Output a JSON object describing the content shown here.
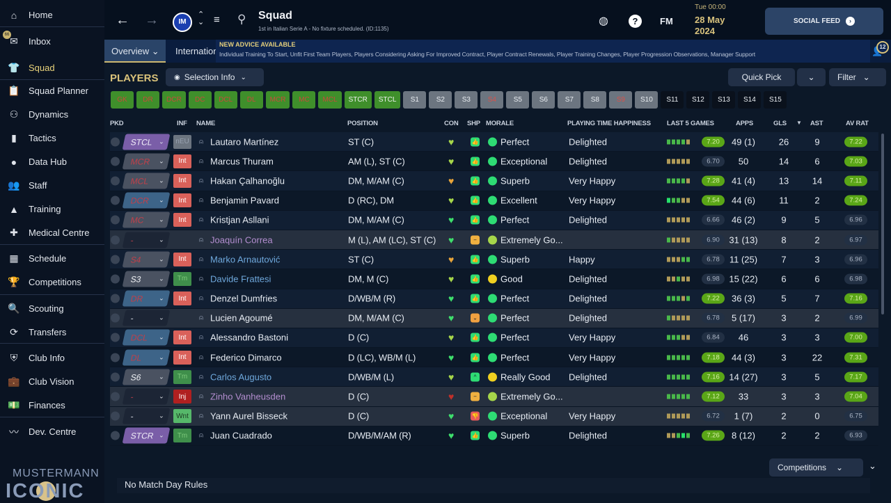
{
  "sidebar": {
    "items": [
      {
        "label": "Home",
        "icon": "home-icon",
        "glyph": "⌂"
      },
      {
        "label": "Inbox",
        "icon": "inbox-icon",
        "glyph": "✉"
      },
      {
        "label": "Squad",
        "icon": "shirt-icon",
        "glyph": "👕"
      },
      {
        "label": "Squad Planner",
        "icon": "clipboard-icon",
        "glyph": "📋"
      },
      {
        "label": "Dynamics",
        "icon": "dynamics-icon",
        "glyph": "⚇"
      },
      {
        "label": "Tactics",
        "icon": "tactics-icon",
        "glyph": "▮"
      },
      {
        "label": "Data Hub",
        "icon": "data-hub-icon",
        "glyph": "●"
      },
      {
        "label": "Staff",
        "icon": "staff-icon",
        "glyph": "👥"
      },
      {
        "label": "Training",
        "icon": "training-icon",
        "glyph": "▲"
      },
      {
        "label": "Medical Centre",
        "icon": "medical-icon",
        "glyph": "✚"
      },
      {
        "label": "Schedule",
        "icon": "calendar-icon",
        "glyph": "▦"
      },
      {
        "label": "Competitions",
        "icon": "trophy-icon",
        "glyph": "🏆"
      },
      {
        "label": "Scouting",
        "icon": "search-icon",
        "glyph": "🔍"
      },
      {
        "label": "Transfers",
        "icon": "transfers-icon",
        "glyph": "⟳"
      },
      {
        "label": "Club Info",
        "icon": "shield-icon",
        "glyph": "⛨"
      },
      {
        "label": "Club Vision",
        "icon": "briefcase-icon",
        "glyph": "💼"
      },
      {
        "label": "Finances",
        "icon": "finances-icon",
        "glyph": "💵"
      },
      {
        "label": "Dev. Centre",
        "icon": "dev-centre-icon",
        "glyph": "〰"
      }
    ],
    "inbox_badge": "66",
    "logo": {
      "line1": "MUSTERMANN",
      "line2": "ICONIC"
    }
  },
  "header": {
    "title": "Squad",
    "subtitle": "1st in Italian Serie A - No fixture scheduled. (ID:1135)",
    "time": "Tue 00:00",
    "date": "28 May 2024",
    "fm": "FM",
    "social_feed": "SOCIAL FEED",
    "club": "Inter"
  },
  "tabs": [
    {
      "label": "Overview ⌄"
    },
    {
      "label": "International"
    }
  ],
  "advice": {
    "title": "NEW ADVICE AVAILABLE",
    "body": "Individual Training To Start, Unfit First Team Players, Players Considering Asking For Improved Contract, Player Contract Renewals, Player Training Changes, Player Progression Observations, Manager Support",
    "badge": "12"
  },
  "players_label": "PLAYERS",
  "selection_info": "Selection Info",
  "quick_pick": "Quick Pick",
  "filter": "Filter",
  "chips": [
    {
      "l": "GK",
      "t": "g"
    },
    {
      "l": "DR",
      "t": "g"
    },
    {
      "l": "DCR",
      "t": "g"
    },
    {
      "l": "DC",
      "t": "g"
    },
    {
      "l": "DCL",
      "t": "g"
    },
    {
      "l": "DL",
      "t": "g"
    },
    {
      "l": "MCR",
      "t": "g"
    },
    {
      "l": "MC",
      "t": "g"
    },
    {
      "l": "MCL",
      "t": "g"
    },
    {
      "l": "STCR",
      "t": "gw"
    },
    {
      "l": "STCL",
      "t": "gw"
    },
    {
      "l": "S1",
      "t": "s"
    },
    {
      "l": "S2",
      "t": "s"
    },
    {
      "l": "S3",
      "t": "s"
    },
    {
      "l": "S4",
      "t": "sr"
    },
    {
      "l": "S5",
      "t": "s"
    },
    {
      "l": "S6",
      "t": "s"
    },
    {
      "l": "S7",
      "t": "s"
    },
    {
      "l": "S8",
      "t": "s"
    },
    {
      "l": "S9",
      "t": "sr"
    },
    {
      "l": "S10",
      "t": "s"
    },
    {
      "l": "S11",
      "t": "k"
    },
    {
      "l": "S12",
      "t": "k"
    },
    {
      "l": "S13",
      "t": "k"
    },
    {
      "l": "S14",
      "t": "k"
    },
    {
      "l": "S15",
      "t": "k"
    }
  ],
  "columns": [
    "PKD",
    "INF",
    "NAME",
    "POSITION",
    "CON",
    "SHP",
    "MORALE",
    "PLAYING TIME HAPPINESS",
    "LAST 5 GAMES",
    "APPS",
    "GLS",
    "AST",
    "AV RAT"
  ],
  "sort_icon": "sort-desc-icon",
  "colors": {
    "green": "#5aa617",
    "purple": "#7a5ea8",
    "blue": "#3d6488",
    "grey": "#4a5261"
  },
  "rows": [
    {
      "name": "Lautaro Martínez",
      "nc": "w",
      "pkd": "STCL",
      "pc": "p",
      "inf": "nEU",
      "pos": "ST (C)",
      "con": "y",
      "shp": "up",
      "mor": "Perfect",
      "mc": "g",
      "pth": "Delighted",
      "bars": "ggggy",
      "l5": "7.20",
      "l5g": 1,
      "apps": "49 (1)",
      "gls": "26",
      "ast": "9",
      "av": "7.22",
      "avg": 1
    },
    {
      "name": "Marcus Thuram",
      "nc": "w",
      "pkd": "MCR",
      "pc": "x",
      "inf": "Int",
      "pos": "AM (L), ST (C)",
      "con": "y",
      "shp": "up",
      "mor": "Exceptional",
      "mc": "g",
      "pth": "Delighted",
      "bars": "yyyyy",
      "l5": "6.70",
      "l5g": 0,
      "apps": "50",
      "gls": "14",
      "ast": "6",
      "av": "7.03",
      "avg": 1
    },
    {
      "name": "Hakan Çalhanoğlu",
      "nc": "w",
      "pkd": "MCL",
      "pc": "x",
      "inf": "Int",
      "pos": "DM, M/AM (C)",
      "con": "o",
      "shp": "up",
      "mor": "Superb",
      "mc": "g",
      "pth": "Very Happy",
      "bars": "ggggy",
      "l5": "7.28",
      "l5g": 1,
      "apps": "41 (4)",
      "gls": "13",
      "ast": "14",
      "av": "7.11",
      "avg": 1
    },
    {
      "name": "Benjamin Pavard",
      "nc": "w",
      "pkd": "DCR",
      "pc": "b",
      "inf": "Int",
      "pos": "D (RC), DM",
      "con": "y",
      "shp": "up",
      "mor": "Excellent",
      "mc": "g",
      "pth": "Very Happy",
      "bars": "bggyy",
      "l5": "7.54",
      "l5g": 1,
      "apps": "44 (6)",
      "gls": "11",
      "ast": "2",
      "av": "7.24",
      "avg": 1
    },
    {
      "name": "Kristjan Asllani",
      "nc": "w",
      "pkd": "MC",
      "pc": "x",
      "inf": "Int",
      "pos": "DM, M/AM (C)",
      "con": "g",
      "shp": "up",
      "mor": "Perfect",
      "mc": "g",
      "pth": "Delighted",
      "bars": "yyyyy",
      "l5": "6.66",
      "l5g": 0,
      "apps": "46 (2)",
      "gls": "9",
      "ast": "5",
      "av": "6.96",
      "avg": 0
    },
    {
      "name": "Joaquín Correa",
      "nc": "p",
      "pkd": "-",
      "pc": "n",
      "inf": "",
      "pos": "M (L), AM (LC), ST (C)",
      "con": "g",
      "shp": "neutral",
      "mor": "Extremely Go...",
      "mc": "l",
      "pth": "",
      "bars": "gyyyy",
      "l5": "6.90",
      "l5g": 0,
      "apps": "31 (13)",
      "gls": "8",
      "ast": "2",
      "av": "6.97",
      "avg": 0,
      "hl": 1
    },
    {
      "name": "Marko Arnautović",
      "nc": "b",
      "pkd": "S4",
      "pc": "x",
      "inf": "Int",
      "pos": "ST (C)",
      "con": "o",
      "shp": "up",
      "mor": "Superb",
      "mc": "g",
      "pth": "Happy",
      "bars": "yyygg",
      "l5": "6.78",
      "l5g": 0,
      "apps": "11 (25)",
      "gls": "7",
      "ast": "3",
      "av": "6.96",
      "avg": 0
    },
    {
      "name": "Davide Frattesi",
      "nc": "b",
      "pkd": "S3",
      "pc": "xw",
      "inf": "Tm",
      "pos": "DM, M (C)",
      "con": "y",
      "shp": "up",
      "mor": "Good",
      "mc": "yl",
      "pth": "Delighted",
      "bars": "yygyy",
      "l5": "6.98",
      "l5g": 0,
      "apps": "15 (22)",
      "gls": "6",
      "ast": "6",
      "av": "6.98",
      "avg": 0
    },
    {
      "name": "Denzel Dumfries",
      "nc": "w",
      "pkd": "DR",
      "pc": "b",
      "inf": "Int",
      "pos": "D/WB/M (R)",
      "con": "g",
      "shp": "up",
      "mor": "Perfect",
      "mc": "g",
      "pth": "Delighted",
      "bars": "gggyg",
      "l5": "7.22",
      "l5g": 1,
      "apps": "36 (3)",
      "gls": "5",
      "ast": "7",
      "av": "7.16",
      "avg": 1
    },
    {
      "name": "Lucien Agoumé",
      "nc": "w",
      "pkd": "-",
      "pc": "nw",
      "inf": "",
      "pos": "DM, M/AM (C)",
      "con": "g",
      "shp": "down-o",
      "mor": "Perfect",
      "mc": "g",
      "pth": "Delighted",
      "bars": "gyyyy",
      "l5": "6.78",
      "l5g": 0,
      "apps": "5 (17)",
      "gls": "3",
      "ast": "2",
      "av": "6.99",
      "avg": 0,
      "hl": 1
    },
    {
      "name": "Alessandro Bastoni",
      "nc": "w",
      "pkd": "DCL",
      "pc": "b",
      "inf": "Int",
      "pos": "D (C)",
      "con": "y",
      "shp": "up",
      "mor": "Perfect",
      "mc": "g",
      "pth": "Very Happy",
      "bars": "gggyy",
      "l5": "6.84",
      "l5g": 0,
      "apps": "46",
      "gls": "3",
      "ast": "3",
      "av": "7.00",
      "avg": 1
    },
    {
      "name": "Federico Dimarco",
      "nc": "w",
      "pkd": "DL",
      "pc": "b",
      "inf": "Int",
      "pos": "D (LC), WB/M (L)",
      "con": "g",
      "shp": "up",
      "mor": "Perfect",
      "mc": "g",
      "pth": "Very Happy",
      "bars": "ggggg",
      "l5": "7.18",
      "l5g": 1,
      "apps": "44 (3)",
      "gls": "3",
      "ast": "22",
      "av": "7.31",
      "avg": 1
    },
    {
      "name": "Carlos Augusto",
      "nc": "b",
      "pkd": "S6",
      "pc": "xw",
      "inf": "Tm",
      "pos": "D/WB/M (L)",
      "con": "y",
      "shp": "chev",
      "mor": "Really Good",
      "mc": "yl",
      "pth": "Delighted",
      "bars": "ggggg",
      "l5": "7.16",
      "l5g": 1,
      "apps": "14 (27)",
      "gls": "3",
      "ast": "5",
      "av": "7.17",
      "avg": 1
    },
    {
      "name": "Zinho Vanheusden",
      "nc": "p",
      "pkd": "-",
      "pc": "n",
      "inf": "Inj",
      "pos": "D (C)",
      "con": "r",
      "shp": "neutral",
      "mor": "Extremely Go...",
      "mc": "l",
      "pth": "",
      "bars": "ggggg",
      "l5": "7.12",
      "l5g": 1,
      "apps": "33",
      "gls": "3",
      "ast": "3",
      "av": "7.04",
      "avg": 1,
      "hl": 1
    },
    {
      "name": "Yann Aurel Bisseck",
      "nc": "w",
      "pkd": "-",
      "pc": "nw",
      "inf": "Wnt",
      "pos": "D (C)",
      "con": "g",
      "shp": "down-r",
      "mor": "Exceptional",
      "mc": "g",
      "pth": "Very Happy",
      "bars": "yyyyy",
      "l5": "6.72",
      "l5g": 0,
      "apps": "1 (7)",
      "gls": "2",
      "ast": "0",
      "av": "6.75",
      "avg": 0,
      "hl": 1
    },
    {
      "name": "Juan Cuadrado",
      "nc": "w",
      "pkd": "STCR",
      "pc": "p",
      "inf": "Tm",
      "pos": "D/WB/M/AM (R)",
      "con": "g",
      "shp": "up",
      "mor": "Superb",
      "mc": "g",
      "pth": "Delighted",
      "bars": "yygbg",
      "l5": "7.26",
      "l5g": 1,
      "apps": "8 (12)",
      "gls": "2",
      "ast": "2",
      "av": "6.93",
      "avg": 0
    }
  ],
  "competitions": "Competitions",
  "footer": "No Match Day Rules"
}
